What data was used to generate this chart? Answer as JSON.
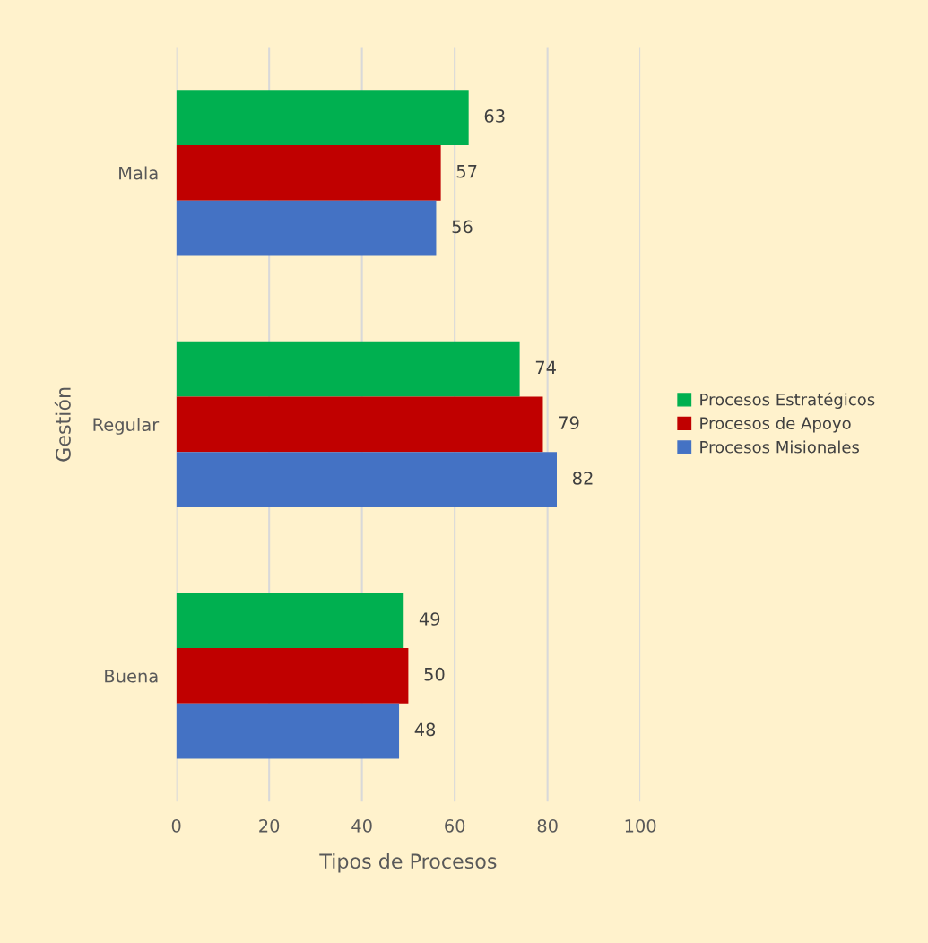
{
  "chart_data": {
    "type": "bar",
    "orientation": "horizontal",
    "xlabel": "Tipos de Procesos",
    "ylabel": "Gestión",
    "categories": [
      "Mala",
      "Regular",
      "Buena"
    ],
    "series": [
      {
        "name": "Procesos Estratégicos",
        "color": "#00b050",
        "values": [
          63,
          74,
          49
        ]
      },
      {
        "name": "Procesos de Apoyo",
        "color": "#c00000",
        "values": [
          57,
          79,
          50
        ]
      },
      {
        "name": "Procesos Misionales",
        "color": "#4472c4",
        "values": [
          56,
          82,
          48
        ]
      }
    ],
    "xlim": [
      0,
      100
    ],
    "xticks": [
      0,
      20,
      40,
      60,
      80,
      100
    ],
    "grid": "x",
    "legend": "right",
    "data_labels": true
  }
}
